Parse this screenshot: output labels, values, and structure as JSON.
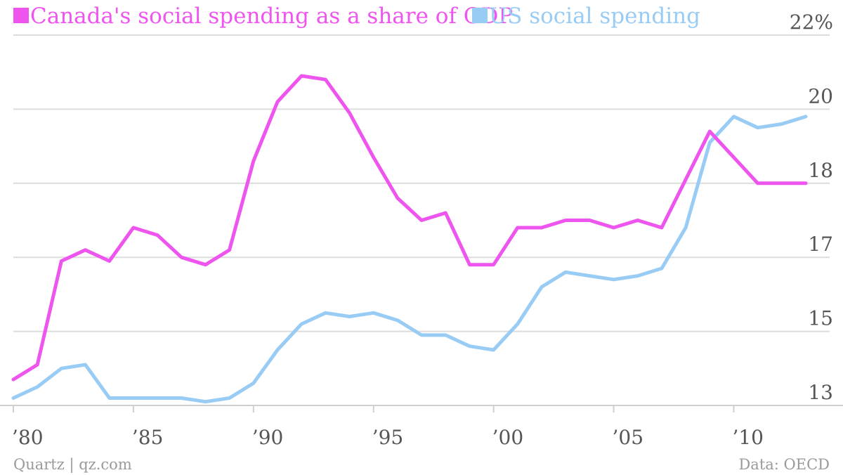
{
  "chart_data": {
    "type": "line",
    "x": [
      1980,
      1981,
      1982,
      1983,
      1984,
      1985,
      1986,
      1987,
      1988,
      1989,
      1990,
      1991,
      1992,
      1993,
      1994,
      1995,
      1996,
      1997,
      1998,
      1999,
      2000,
      2001,
      2002,
      2003,
      2004,
      2005,
      2006,
      2007,
      2008,
      2009,
      2010,
      2011,
      2012,
      2013
    ],
    "series": [
      {
        "name": "Canada's social spending as a share of GDP",
        "color": "#ee55ee",
        "values": [
          13.7,
          14.1,
          16.9,
          17.1,
          16.9,
          17.4,
          17.3,
          17.0,
          16.8,
          17.1,
          18.6,
          20.2,
          20.9,
          20.8,
          19.9,
          18.7,
          17.8,
          17.5,
          17.6,
          16.8,
          16.8,
          17.4,
          17.4,
          17.5,
          17.5,
          17.4,
          17.5,
          17.4,
          18.1,
          19.4,
          18.7,
          18.0,
          18.0,
          18.0
        ]
      },
      {
        "name": "US social spending",
        "color": "#99ccf5",
        "values": [
          13.2,
          13.5,
          14.0,
          14.1,
          13.2,
          13.2,
          13.2,
          13.2,
          13.1,
          13.2,
          13.6,
          14.5,
          15.2,
          15.5,
          15.4,
          15.5,
          15.3,
          14.9,
          14.9,
          14.6,
          14.5,
          15.2,
          16.2,
          16.6,
          16.5,
          16.4,
          16.5,
          16.7,
          17.4,
          19.1,
          19.8,
          19.5,
          19.6,
          19.8
        ]
      }
    ],
    "y_ticks": [
      {
        "value": 13,
        "label": "13"
      },
      {
        "value": 15,
        "label": "15"
      },
      {
        "value": 17,
        "label": "17"
      },
      {
        "value": 18,
        "label": "18"
      },
      {
        "value": 20,
        "label": "20"
      },
      {
        "value": 22,
        "label": "22%"
      }
    ],
    "x_ticks": [
      {
        "value": 1980,
        "label": "’80"
      },
      {
        "value": 1985,
        "label": "’85"
      },
      {
        "value": 1990,
        "label": "’90"
      },
      {
        "value": 1995,
        "label": "’95"
      },
      {
        "value": 2000,
        "label": "’00"
      },
      {
        "value": 2005,
        "label": "’05"
      },
      {
        "value": 2010,
        "label": "’10"
      }
    ],
    "xlim": [
      1980,
      2013
    ],
    "ylim": [
      13,
      22
    ],
    "grid": true,
    "legend": "top-left"
  },
  "legend": {
    "canada_label": "Canada's social spending as a share of GDP",
    "us_label": "US social spending"
  },
  "footer": {
    "source_left": "Quartz | qz.com",
    "source_right": "Data: OECD"
  }
}
